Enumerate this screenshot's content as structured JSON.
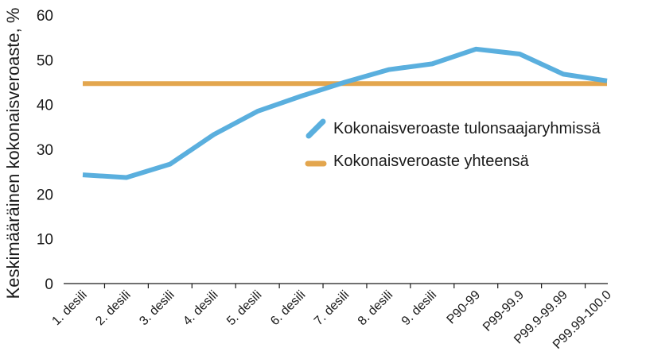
{
  "chart_data": {
    "type": "line",
    "categories": [
      "1. desili",
      "2. desili",
      "3. desili",
      "4. desili",
      "5. desili",
      "6. desili",
      "7. desili",
      "8. desili",
      "9. desili",
      "P90-99",
      "P99-99.9",
      "P99.9-99.99",
      "P99.99-100.0"
    ],
    "series": [
      {
        "name": "Kokonaisveroaste tulonsaajaryhmissä",
        "color": "#5aafde",
        "values": [
          24.3,
          23.7,
          26.7,
          33.3,
          38.5,
          41.9,
          45.0,
          47.8,
          49.1,
          52.4,
          51.3,
          46.8,
          45.3
        ]
      },
      {
        "name": "Kokonaisveroaste yhteensä",
        "color": "#e3a64e",
        "values": [
          44.7,
          44.7,
          44.7,
          44.7,
          44.7,
          44.7,
          44.7,
          44.7,
          44.7,
          44.7,
          44.7,
          44.7,
          44.7
        ]
      }
    ],
    "title": "",
    "xlabel": "",
    "ylabel": "Keskimääräinen kokonaisveroaste, %",
    "ylim": [
      0,
      60
    ],
    "yticks": [
      "0",
      "10",
      "20",
      "30",
      "40",
      "50",
      "60"
    ],
    "grid": false,
    "legend_position": "center-right"
  }
}
